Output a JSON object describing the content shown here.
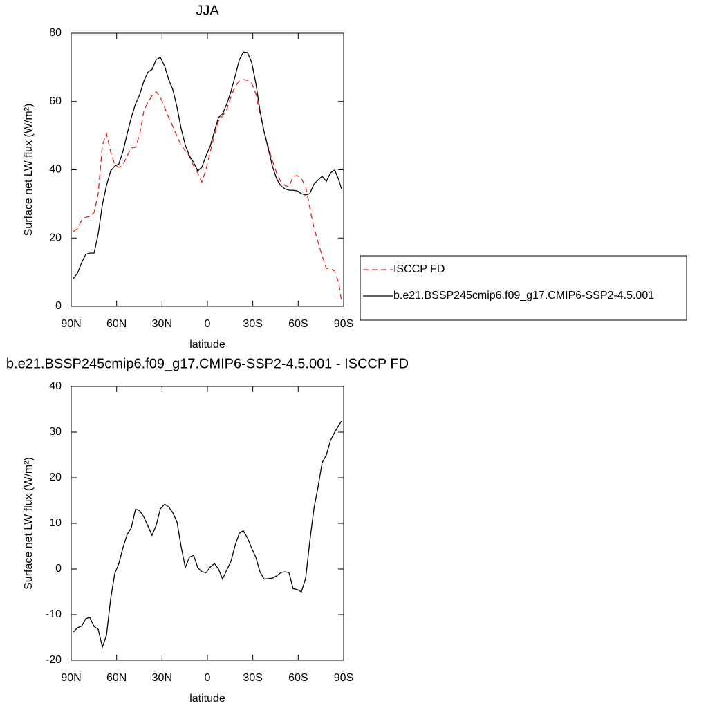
{
  "chart_data": [
    {
      "type": "line",
      "title": "JJA",
      "xlabel": "latitude",
      "ylabel": "Surface net LW flux (W/m²)",
      "x": [
        88.6,
        85.9,
        83.1,
        80.4,
        77.7,
        74.9,
        72.2,
        69.4,
        66.7,
        63.9,
        61.2,
        58.5,
        55.7,
        53.0,
        50.3,
        47.5,
        44.8,
        42.0,
        39.3,
        36.6,
        33.8,
        31.1,
        28.3,
        25.6,
        22.8,
        20.1,
        17.4,
        14.6,
        11.9,
        9.1,
        6.4,
        3.7,
        0.9,
        -1.8,
        -4.6,
        -7.3,
        -10.0,
        -12.8,
        -15.5,
        -18.3,
        -21.0,
        -23.7,
        -26.5,
        -29.2,
        -32.0,
        -34.7,
        -37.4,
        -40.2,
        -42.9,
        -45.7,
        -48.4,
        -51.1,
        -53.9,
        -56.6,
        -59.4,
        -62.1,
        -64.9,
        -67.6,
        -70.4,
        -73.1,
        -75.8,
        -78.6,
        -81.3,
        -84.1,
        -86.8,
        -88.6
      ],
      "series": [
        {
          "name": "ISCCP FD",
          "color": "#e8201e",
          "dashed": true,
          "values": [
            21.9,
            22.7,
            25.3,
            26.1,
            26.3,
            27.5,
            33,
            47.2,
            50.6,
            45.1,
            41.5,
            40.7,
            41.5,
            44.1,
            46.4,
            46.6,
            50.2,
            57.3,
            59.7,
            61.7,
            62.8,
            61.3,
            58.3,
            55.3,
            52.6,
            49.8,
            47.2,
            45.5,
            43.9,
            41.1,
            39.1,
            36.4,
            40.1,
            45.1,
            50,
            54.3,
            55.7,
            57.7,
            61.3,
            64.4,
            66,
            66.4,
            66.2,
            65.4,
            62.3,
            56.3,
            51.2,
            46.8,
            42.7,
            39.1,
            36.6,
            35.4,
            35,
            38.1,
            38.3,
            37.4,
            35,
            28.9,
            22.9,
            18.8,
            14.8,
            11.1,
            11.1,
            10.3,
            6.7,
            1.6
          ]
        },
        {
          "name": "b.e21.BSSP245cmip6.f09_g17.CMIP6-SSP2-4.5.001",
          "color": "#000000",
          "dashed": false,
          "values": [
            8.1,
            9.7,
            12.8,
            15.2,
            15.6,
            15.6,
            21.2,
            29.8,
            35.4,
            39.7,
            41.1,
            41.7,
            45.5,
            50.6,
            55.3,
            59.3,
            61.9,
            66,
            68.6,
            69.4,
            72.3,
            72.9,
            70.4,
            66.4,
            63.4,
            58.3,
            52.2,
            47.2,
            44.1,
            42.1,
            39.7,
            40.7,
            44.1,
            46.8,
            51.2,
            55.3,
            56.3,
            59.3,
            62.8,
            67.4,
            72.1,
            74.5,
            74.3,
            71.5,
            65.4,
            57.3,
            51.2,
            46.2,
            41.1,
            37.4,
            35.4,
            34.4,
            34,
            34,
            33.8,
            33,
            32.6,
            33,
            35.8,
            37,
            38.1,
            36.6,
            39.1,
            39.9,
            37,
            34.4
          ]
        }
      ],
      "xlim": [
        90,
        -90
      ],
      "xticks": [
        {
          "value": 90,
          "label": "90N"
        },
        {
          "value": 60,
          "label": "60N"
        },
        {
          "value": 30,
          "label": "30N"
        },
        0,
        {
          "value": -30,
          "label": "30S"
        },
        {
          "value": -60,
          "label": "60S"
        },
        {
          "value": -90,
          "label": "90S"
        }
      ],
      "ylim": [
        0,
        80
      ],
      "yticks": [
        0,
        20,
        40,
        60,
        80
      ],
      "legend": "right"
    },
    {
      "type": "line",
      "title": "b.e21.BSSP245cmip6.f09_g17.CMIP6-SSP2-4.5.001 - ISCCP FD",
      "xlabel": "latitude",
      "ylabel": "Surface net LW flux (W/m²)",
      "x": [
        88.6,
        85.9,
        83.1,
        80.4,
        77.7,
        74.9,
        72.2,
        69.4,
        66.7,
        63.9,
        61.2,
        58.5,
        55.7,
        53.0,
        50.3,
        47.5,
        44.8,
        42.0,
        39.3,
        36.6,
        33.8,
        31.1,
        28.3,
        25.6,
        22.8,
        20.1,
        17.4,
        14.6,
        11.9,
        9.1,
        6.4,
        3.7,
        0.9,
        -1.8,
        -4.6,
        -7.3,
        -10.0,
        -12.8,
        -15.5,
        -18.3,
        -21.0,
        -23.7,
        -26.5,
        -29.2,
        -32.0,
        -34.7,
        -37.4,
        -40.2,
        -42.9,
        -45.7,
        -48.4,
        -51.1,
        -53.9,
        -56.6,
        -59.4,
        -62.1,
        -64.9,
        -67.6,
        -70.4,
        -73.1,
        -75.8,
        -78.6,
        -81.3,
        -84.1,
        -86.8,
        -88.6
      ],
      "color": "#000000",
      "values": [
        -13.8,
        -12.9,
        -12.5,
        -10.9,
        -10.6,
        -12.6,
        -13.2,
        -17.1,
        -14.5,
        -6.5,
        -1,
        1.2,
        4.8,
        7.6,
        9,
        13.1,
        12.8,
        11.4,
        9.4,
        7.4,
        9.6,
        13.2,
        14.2,
        13.6,
        12.3,
        10.3,
        5,
        0.3,
        2.6,
        3,
        0.3,
        -0.6,
        -0.8,
        0.4,
        1.2,
        0,
        -2.2,
        -0.2,
        1.6,
        5.2,
        7.8,
        8.4,
        6.8,
        4.6,
        2.6,
        -0.6,
        -2.2,
        -2.1,
        -2,
        -1.5,
        -0.8,
        -0.6,
        -0.8,
        -4.3,
        -4.5,
        -5,
        -2,
        6,
        13.3,
        18,
        23.3,
        25,
        28.2,
        30,
        31.5,
        32.4
      ],
      "xlim": [
        90,
        -90
      ],
      "xticks": [
        {
          "value": 90,
          "label": "90N"
        },
        {
          "value": 60,
          "label": "60N"
        },
        {
          "value": 30,
          "label": "30N"
        },
        0,
        {
          "value": -30,
          "label": "30S"
        },
        {
          "value": -60,
          "label": "60S"
        },
        {
          "value": -90,
          "label": "90S"
        }
      ],
      "ylim": [
        -20,
        40
      ],
      "yticks": [
        -20,
        -10,
        0,
        10,
        20,
        30,
        40
      ]
    }
  ]
}
